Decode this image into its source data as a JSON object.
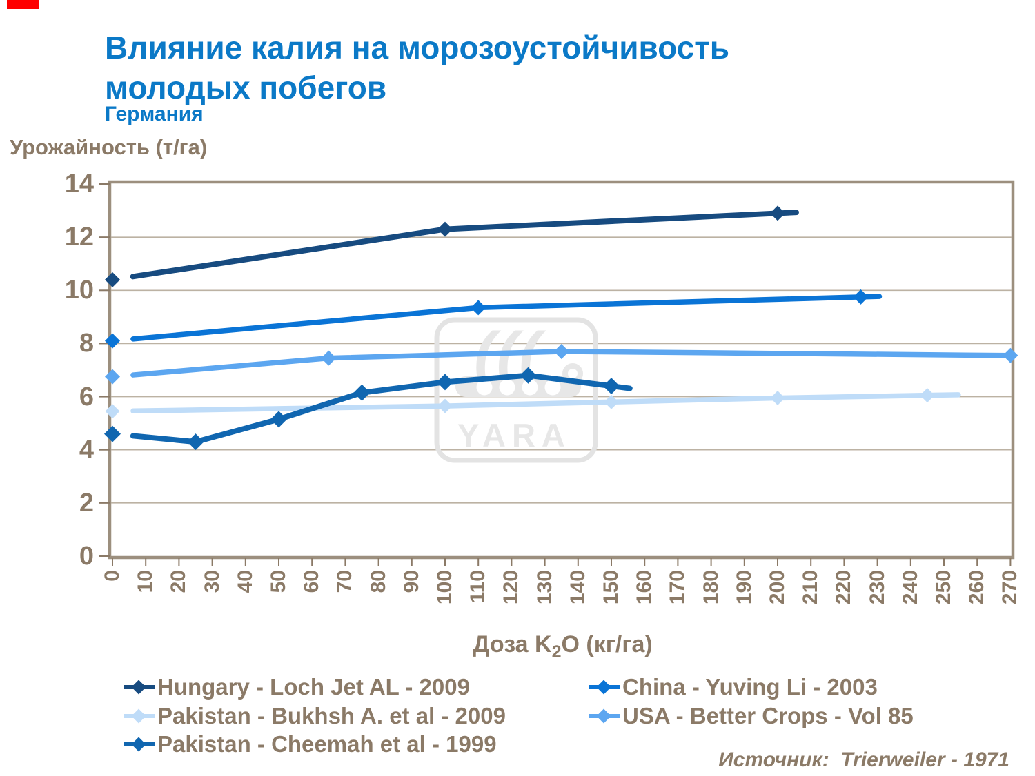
{
  "header": {
    "title_line1": "Влияние калия на морозоустойчивость",
    "title_line2": "молодых побегов",
    "subtitle": "Германия"
  },
  "chart_data": {
    "type": "line",
    "title": "Влияние калия на морозоустойчивость молодых побегов",
    "region": "Германия",
    "ylabel": "Урожайность (т/га)",
    "xlabel_pre": "Доза K",
    "xlabel_sub": "2",
    "xlabel_post": "O (кг/га)",
    "x_axis": {
      "min": 0,
      "max": 270,
      "tick_step": 10,
      "tick_labels": [
        0,
        10,
        20,
        30,
        40,
        50,
        60,
        70,
        80,
        90,
        100,
        110,
        120,
        130,
        140,
        150,
        160,
        170,
        180,
        190,
        200,
        210,
        220,
        230,
        240,
        250,
        260,
        270
      ]
    },
    "y_axis": {
      "min": 0,
      "max": 14,
      "tick_step": 2,
      "tick_labels": [
        0,
        2,
        4,
        6,
        8,
        10,
        12,
        14
      ]
    },
    "grid": true,
    "legend_position": "bottom",
    "series": [
      {
        "name": "Hungary - Loch Jet AL - 2009",
        "color": "#174b80",
        "points": [
          [
            0,
            10.4
          ],
          [
            100,
            12.3
          ],
          [
            200,
            12.9
          ]
        ],
        "legend_col": 0,
        "legend_row": 0
      },
      {
        "name": "China - Yuving Li - 2003",
        "color": "#0a74d6",
        "points": [
          [
            0,
            8.1
          ],
          [
            110,
            9.35
          ],
          [
            225,
            9.75
          ]
        ],
        "legend_col": 1,
        "legend_row": 0
      },
      {
        "name": "Pakistan - Bukhsh A. et al - 2009",
        "color": "#bfdcf8",
        "points": [
          [
            0,
            5.45
          ],
          [
            100,
            5.65
          ],
          [
            150,
            5.8
          ],
          [
            200,
            5.95
          ],
          [
            245,
            6.05
          ]
        ],
        "legend_col": 0,
        "legend_row": 1
      },
      {
        "name": "USA - Better Crops - Vol 85",
        "color": "#5ca6f0",
        "points": [
          [
            0,
            6.75
          ],
          [
            65,
            7.45
          ],
          [
            135,
            7.7
          ],
          [
            270,
            7.55
          ]
        ],
        "legend_col": 1,
        "legend_row": 1
      },
      {
        "name": "Pakistan - Cheemah et al - 1999",
        "color": "#1066b0",
        "points": [
          [
            0,
            4.6
          ],
          [
            25,
            4.3
          ],
          [
            50,
            5.15
          ],
          [
            75,
            6.15
          ],
          [
            100,
            6.55
          ],
          [
            125,
            6.8
          ],
          [
            150,
            6.4
          ]
        ],
        "legend_col": 0,
        "legend_row": 2
      }
    ],
    "watermark": "YARA",
    "source": "Источник:  Trierweiler - 1971",
    "colors": {
      "title_blue": "#0b79c7",
      "text_brown": "#8b7a67",
      "grid": "#bcb2a3",
      "border": "#9c8f7e",
      "watermark_gray": "#e7e7e7"
    }
  }
}
